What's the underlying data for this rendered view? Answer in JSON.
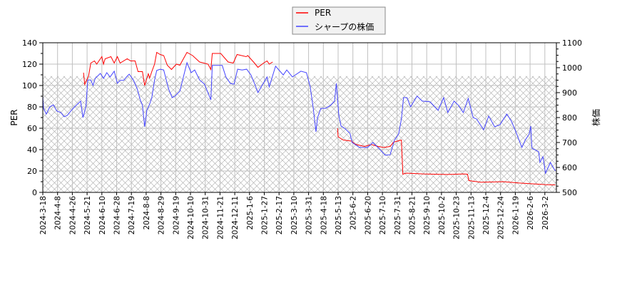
{
  "chart_data": {
    "type": "line",
    "title": "",
    "xlabel": "",
    "ylabel_left": "PER",
    "ylabel_right": "株価",
    "ylim_left": [
      0,
      140
    ],
    "ylim_right": [
      500,
      1100
    ],
    "yticks_left": [
      0,
      20,
      40,
      60,
      80,
      100,
      120,
      140
    ],
    "yticks_right": [
      500,
      600,
      700,
      800,
      900,
      1000,
      1100
    ],
    "grid": true,
    "legend_position": "top-center",
    "hatched_region_price_range": [
      500,
      966
    ],
    "x_ticks": [
      "2024-3-18",
      "2024-4-8",
      "2024-4-26",
      "2024-5-21",
      "2024-6-10",
      "2024-6-28",
      "2024-7-19",
      "2024-8-8",
      "2024-8-29",
      "2024-9-19",
      "2024-10-10",
      "2024-10-31",
      "2024-11-21",
      "2024-12-11",
      "2025-1-6",
      "2025-1-27",
      "2025-2-17",
      "2025-3-10",
      "2025-3-31",
      "2025-4-18",
      "2025-5-13",
      "2025-6-2",
      "2025-6-20",
      "2025-7-10",
      "2025-7-31",
      "2025-8-21",
      "2025-9-10",
      "2025-10-2",
      "2025-10-23",
      "2025-11-13",
      "2025-12-4",
      "2025-12-24",
      "2026-1-19",
      "2026-2-6",
      "2026-3-2"
    ],
    "series": [
      {
        "name": "PER",
        "axis": "left",
        "color": "#ff0000",
        "points": [
          [
            "2024-05-15",
            112
          ],
          [
            "2024-05-17",
            101
          ],
          [
            "2024-05-23",
            109
          ],
          [
            "2024-05-26",
            121
          ],
          [
            "2024-05-31",
            123
          ],
          [
            "2024-06-03",
            120
          ],
          [
            "2024-06-07",
            124
          ],
          [
            "2024-06-10",
            127
          ],
          [
            "2024-06-12",
            120
          ],
          [
            "2024-06-14",
            125
          ],
          [
            "2024-06-21",
            127
          ],
          [
            "2024-06-25",
            121
          ],
          [
            "2024-06-29",
            127
          ],
          [
            "2024-07-03",
            121
          ],
          [
            "2024-07-13",
            125
          ],
          [
            "2024-07-18",
            123
          ],
          [
            "2024-07-24",
            123
          ],
          [
            "2024-07-28",
            113
          ],
          [
            "2024-08-03",
            113
          ],
          [
            "2024-08-06",
            100
          ],
          [
            "2024-08-11",
            111
          ],
          [
            "2024-08-13",
            107
          ],
          [
            "2024-08-16",
            113
          ],
          [
            "2024-08-20",
            120
          ],
          [
            "2024-08-23",
            131
          ],
          [
            "2024-08-28",
            129
          ],
          [
            "2024-09-02",
            128
          ],
          [
            "2024-09-07",
            119
          ],
          [
            "2024-09-13",
            115
          ],
          [
            "2024-09-20",
            120
          ],
          [
            "2024-09-25",
            119
          ],
          [
            "2024-09-30",
            125
          ],
          [
            "2024-10-05",
            131
          ],
          [
            "2024-10-13",
            128
          ],
          [
            "2024-10-23",
            122
          ],
          [
            "2024-11-04",
            120
          ],
          [
            "2024-11-08",
            115
          ],
          [
            "2024-11-10",
            130
          ],
          [
            "2024-11-22",
            130
          ],
          [
            "2024-12-02",
            122
          ],
          [
            "2024-12-09",
            121
          ],
          [
            "2024-12-15",
            129
          ],
          [
            "2024-12-31",
            127
          ],
          [
            "2025-01-03",
            128
          ],
          [
            "2025-01-13",
            121
          ],
          [
            "2025-01-18",
            117
          ],
          [
            "2025-01-26",
            121
          ],
          [
            "2025-01-31",
            123
          ],
          [
            "2025-02-03",
            120
          ],
          [
            "2025-02-08",
            122
          ],
          [
            "2025-02-09",
            null
          ],
          [
            "2025-05-12",
            60
          ],
          [
            "2025-05-13",
            52
          ],
          [
            "2025-05-20",
            49
          ],
          [
            "2025-05-31",
            48
          ],
          [
            "2025-06-05",
            45
          ],
          [
            "2025-06-16",
            43
          ],
          [
            "2025-06-25",
            44.7
          ],
          [
            "2025-07-04",
            43
          ],
          [
            "2025-07-12",
            42
          ],
          [
            "2025-07-21",
            43
          ],
          [
            "2025-07-26",
            47
          ],
          [
            "2025-08-06",
            49
          ],
          [
            "2025-08-08",
            17
          ],
          [
            "2025-08-13",
            18
          ],
          [
            "2025-09-05",
            17.3
          ],
          [
            "2025-10-10",
            16.7
          ],
          [
            "2025-11-02",
            17.3
          ],
          [
            "2025-11-08",
            17
          ],
          [
            "2025-11-10",
            11
          ],
          [
            "2025-11-27",
            9.5
          ],
          [
            "2025-12-29",
            10
          ],
          [
            "2026-01-24",
            8.7
          ],
          [
            "2026-02-10",
            8
          ],
          [
            "2026-03-02",
            7.3
          ],
          [
            "2026-03-19",
            7
          ]
        ]
      },
      {
        "name": "シャープの株価",
        "axis": "right",
        "color": "#4444ff",
        "points": [
          [
            "2024-03-18",
            886
          ],
          [
            "2024-03-19",
            837
          ],
          [
            "2024-03-23",
            814
          ],
          [
            "2024-03-28",
            843
          ],
          [
            "2024-04-02",
            851
          ],
          [
            "2024-04-07",
            826
          ],
          [
            "2024-04-12",
            820
          ],
          [
            "2024-04-16",
            803
          ],
          [
            "2024-04-20",
            809
          ],
          [
            "2024-04-24",
            826
          ],
          [
            "2024-04-30",
            843
          ],
          [
            "2024-05-06",
            857
          ],
          [
            "2024-05-10",
            866
          ],
          [
            "2024-05-14",
            800
          ],
          [
            "2024-05-19",
            843
          ],
          [
            "2024-05-22",
            951
          ],
          [
            "2024-05-26",
            951
          ],
          [
            "2024-05-29",
            929
          ],
          [
            "2024-06-01",
            957
          ],
          [
            "2024-06-08",
            977
          ],
          [
            "2024-06-12",
            957
          ],
          [
            "2024-06-16",
            980
          ],
          [
            "2024-06-20",
            963
          ],
          [
            "2024-06-25",
            986
          ],
          [
            "2024-06-29",
            937
          ],
          [
            "2024-07-03",
            949
          ],
          [
            "2024-07-08",
            949
          ],
          [
            "2024-07-13",
            966
          ],
          [
            "2024-07-16",
            974
          ],
          [
            "2024-07-22",
            949
          ],
          [
            "2024-07-27",
            914
          ],
          [
            "2024-07-31",
            871
          ],
          [
            "2024-08-03",
            849
          ],
          [
            "2024-08-06",
            763
          ],
          [
            "2024-08-09",
            829
          ],
          [
            "2024-08-13",
            854
          ],
          [
            "2024-08-16",
            880
          ],
          [
            "2024-08-20",
            951
          ],
          [
            "2024-08-23",
            989
          ],
          [
            "2024-08-28",
            994
          ],
          [
            "2024-09-02",
            991
          ],
          [
            "2024-09-05",
            957
          ],
          [
            "2024-09-09",
            914
          ],
          [
            "2024-09-14",
            880
          ],
          [
            "2024-09-18",
            886
          ],
          [
            "2024-09-25",
            906
          ],
          [
            "2024-09-30",
            963
          ],
          [
            "2024-10-05",
            1020
          ],
          [
            "2024-10-11",
            980
          ],
          [
            "2024-10-16",
            991
          ],
          [
            "2024-10-23",
            951
          ],
          [
            "2024-10-30",
            934
          ],
          [
            "2024-11-08",
            871
          ],
          [
            "2024-11-10",
            1009
          ],
          [
            "2024-11-18",
            1009
          ],
          [
            "2024-11-24",
            1009
          ],
          [
            "2024-11-29",
            963
          ],
          [
            "2024-12-05",
            937
          ],
          [
            "2024-12-10",
            934
          ],
          [
            "2024-12-16",
            994
          ],
          [
            "2024-12-24",
            991
          ],
          [
            "2025-01-01",
            994
          ],
          [
            "2025-01-08",
            971
          ],
          [
            "2025-01-13",
            937
          ],
          [
            "2025-01-18",
            900
          ],
          [
            "2025-01-24",
            929
          ],
          [
            "2025-01-31",
            963
          ],
          [
            "2025-02-03",
            923
          ],
          [
            "2025-02-12",
            1006
          ],
          [
            "2025-02-23",
            971
          ],
          [
            "2025-02-28",
            991
          ],
          [
            "2025-03-08",
            963
          ],
          [
            "2025-03-20",
            986
          ],
          [
            "2025-03-28",
            980
          ],
          [
            "2025-04-02",
            923
          ],
          [
            "2025-04-06",
            829
          ],
          [
            "2025-04-09",
            743
          ],
          [
            "2025-04-11",
            800
          ],
          [
            "2025-04-15",
            837
          ],
          [
            "2025-04-22",
            837
          ],
          [
            "2025-04-30",
            849
          ],
          [
            "2025-05-07",
            866
          ],
          [
            "2025-05-10",
            937
          ],
          [
            "2025-05-14",
            809
          ],
          [
            "2025-05-17",
            766
          ],
          [
            "2025-05-22",
            757
          ],
          [
            "2025-05-29",
            737
          ],
          [
            "2025-06-01",
            700
          ],
          [
            "2025-06-10",
            680
          ],
          [
            "2025-06-20",
            680
          ],
          [
            "2025-06-27",
            700
          ],
          [
            "2025-07-07",
            671
          ],
          [
            "2025-07-14",
            649
          ],
          [
            "2025-07-21",
            651
          ],
          [
            "2025-07-27",
            709
          ],
          [
            "2025-08-02",
            734
          ],
          [
            "2025-08-06",
            794
          ],
          [
            "2025-08-09",
            880
          ],
          [
            "2025-08-14",
            880
          ],
          [
            "2025-08-19",
            843
          ],
          [
            "2025-08-28",
            886
          ],
          [
            "2025-09-04",
            866
          ],
          [
            "2025-09-15",
            863
          ],
          [
            "2025-09-27",
            829
          ],
          [
            "2025-10-05",
            880
          ],
          [
            "2025-10-11",
            820
          ],
          [
            "2025-10-20",
            866
          ],
          [
            "2025-10-26",
            849
          ],
          [
            "2025-11-02",
            820
          ],
          [
            "2025-11-09",
            877
          ],
          [
            "2025-11-16",
            800
          ],
          [
            "2025-11-21",
            794
          ],
          [
            "2025-12-01",
            751
          ],
          [
            "2025-12-08",
            806
          ],
          [
            "2025-12-16",
            763
          ],
          [
            "2025-12-23",
            771
          ],
          [
            "2026-01-04",
            814
          ],
          [
            "2026-01-12",
            786
          ],
          [
            "2026-01-19",
            749
          ],
          [
            "2026-01-27",
            680
          ],
          [
            "2026-01-31",
            709
          ],
          [
            "2026-02-05",
            734
          ],
          [
            "2026-02-07",
            766
          ],
          [
            "2026-02-09",
            677
          ],
          [
            "2026-02-20",
            663
          ],
          [
            "2026-02-22",
            620
          ],
          [
            "2026-02-27",
            643
          ],
          [
            "2026-03-03",
            577
          ],
          [
            "2026-03-11",
            620
          ],
          [
            "2026-03-17",
            594
          ],
          [
            "2026-03-19",
            586
          ]
        ]
      }
    ]
  }
}
